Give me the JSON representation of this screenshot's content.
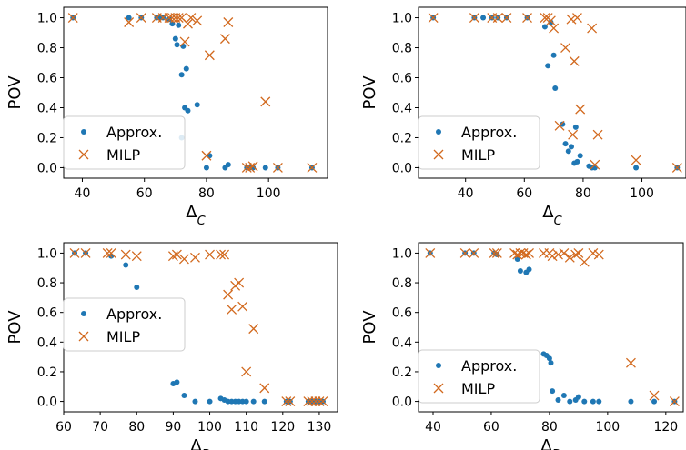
{
  "chart_data": [
    {
      "type": "scatter",
      "xlabel_main": "Δ",
      "xlabel_sub": "C",
      "ylabel": "POV",
      "xlim": [
        34,
        119
      ],
      "ylim": [
        -0.07,
        1.07
      ],
      "xticks": [
        40,
        60,
        80,
        100
      ],
      "yticks": [
        0.0,
        0.2,
        0.4,
        0.6,
        0.8,
        1.0
      ],
      "legend_position": "lower-left",
      "series": [
        {
          "name": "Approx.",
          "marker": "circle",
          "color": "#1f77b4",
          "points": [
            [
              37,
              1.0
            ],
            [
              55,
              1.0
            ],
            [
              59,
              1.0
            ],
            [
              64,
              1.0
            ],
            [
              65,
              1.0
            ],
            [
              66,
              1.0
            ],
            [
              68,
              0.99
            ],
            [
              69,
              0.96
            ],
            [
              70,
              0.86
            ],
            [
              70.5,
              0.82
            ],
            [
              71,
              0.95
            ],
            [
              72,
              0.62
            ],
            [
              72,
              0.2
            ],
            [
              72.5,
              0.81
            ],
            [
              73,
              0.4
            ],
            [
              73.5,
              0.66
            ],
            [
              74,
              0.38
            ],
            [
              77,
              0.42
            ],
            [
              80,
              0.0
            ],
            [
              81,
              0.08
            ],
            [
              86,
              0.0
            ],
            [
              87,
              0.02
            ],
            [
              93,
              0.0
            ],
            [
              94,
              0.0
            ],
            [
              95,
              0.0
            ],
            [
              99,
              0.0
            ],
            [
              103,
              0.0
            ],
            [
              114,
              0.0
            ]
          ]
        },
        {
          "name": "MILP",
          "marker": "x",
          "color": "#d2691e",
          "points": [
            [
              37,
              1.0
            ],
            [
              55,
              0.97
            ],
            [
              59,
              1.0
            ],
            [
              64,
              1.0
            ],
            [
              66,
              1.0
            ],
            [
              68,
              1.0
            ],
            [
              69,
              1.0
            ],
            [
              70,
              1.0
            ],
            [
              71,
              1.0
            ],
            [
              72,
              1.0
            ],
            [
              73,
              0.84
            ],
            [
              74,
              0.96
            ],
            [
              75,
              1.0
            ],
            [
              77,
              0.98
            ],
            [
              80,
              0.08
            ],
            [
              81,
              0.75
            ],
            [
              86,
              0.86
            ],
            [
              87,
              0.97
            ],
            [
              93,
              0.0
            ],
            [
              94,
              0.0
            ],
            [
              95,
              0.01
            ],
            [
              99,
              0.44
            ],
            [
              103,
              0.0
            ],
            [
              114,
              0.0
            ]
          ]
        }
      ]
    },
    {
      "type": "scatter",
      "xlabel_main": "Δ",
      "xlabel_sub": "C",
      "ylabel": "POV",
      "xlim": [
        24,
        115
      ],
      "ylim": [
        -0.07,
        1.07
      ],
      "xticks": [
        40,
        60,
        80,
        100
      ],
      "yticks": [
        0.0,
        0.2,
        0.4,
        0.6,
        0.8,
        1.0
      ],
      "legend_position": "lower-left",
      "series": [
        {
          "name": "Approx.",
          "marker": "circle",
          "color": "#1f77b4",
          "points": [
            [
              29,
              1.0
            ],
            [
              43,
              1.0
            ],
            [
              46,
              1.0
            ],
            [
              49,
              1.0
            ],
            [
              51,
              1.0
            ],
            [
              54,
              1.0
            ],
            [
              61,
              1.0
            ],
            [
              67,
              0.94
            ],
            [
              68,
              0.68
            ],
            [
              69,
              0.97
            ],
            [
              70,
              0.75
            ],
            [
              70.5,
              0.53
            ],
            [
              73,
              0.29
            ],
            [
              74,
              0.16
            ],
            [
              75,
              0.11
            ],
            [
              76,
              0.14
            ],
            [
              77,
              0.03
            ],
            [
              77.5,
              0.27
            ],
            [
              78,
              0.04
            ],
            [
              79,
              0.08
            ],
            [
              82,
              0.01
            ],
            [
              83,
              0.0
            ],
            [
              84,
              0.0
            ],
            [
              98,
              0.0
            ],
            [
              112,
              0.0
            ]
          ]
        },
        {
          "name": "MILP",
          "marker": "x",
          "color": "#d2691e",
          "points": [
            [
              29,
              1.0
            ],
            [
              43,
              1.0
            ],
            [
              49,
              1.0
            ],
            [
              51,
              1.0
            ],
            [
              54,
              1.0
            ],
            [
              61,
              1.0
            ],
            [
              67,
              1.0
            ],
            [
              68,
              1.0
            ],
            [
              69,
              0.98
            ],
            [
              70,
              0.93
            ],
            [
              72,
              0.28
            ],
            [
              74,
              0.8
            ],
            [
              76,
              0.99
            ],
            [
              76.5,
              0.22
            ],
            [
              77,
              0.71
            ],
            [
              78,
              1.0
            ],
            [
              79,
              0.39
            ],
            [
              83,
              0.93
            ],
            [
              84,
              0.02
            ],
            [
              85,
              0.22
            ],
            [
              98,
              0.05
            ],
            [
              112,
              0.0
            ]
          ]
        }
      ]
    },
    {
      "type": "scatter",
      "xlabel_main": "Δ",
      "xlabel_sub": "D",
      "ylabel": "POV",
      "xlim": [
        60,
        135
      ],
      "ylim": [
        -0.07,
        1.07
      ],
      "xticks": [
        60,
        70,
        80,
        90,
        100,
        110,
        120,
        130
      ],
      "yticks": [
        0.0,
        0.2,
        0.4,
        0.6,
        0.8,
        1.0
      ],
      "legend_position": "center-left",
      "series": [
        {
          "name": "Approx.",
          "marker": "circle",
          "color": "#1f77b4",
          "points": [
            [
              63,
              1.0
            ],
            [
              66,
              1.0
            ],
            [
              73,
              0.98
            ],
            [
              77,
              0.92
            ],
            [
              80,
              0.77
            ],
            [
              90,
              0.12
            ],
            [
              91,
              0.13
            ],
            [
              93,
              0.04
            ],
            [
              96,
              0.0
            ],
            [
              100,
              0.0
            ],
            [
              103,
              0.02
            ],
            [
              104,
              0.01
            ],
            [
              105,
              0.0
            ],
            [
              106,
              0.0
            ],
            [
              107,
              0.0
            ],
            [
              108,
              0.0
            ],
            [
              109,
              0.0
            ],
            [
              110,
              0.0
            ],
            [
              112,
              0.0
            ],
            [
              115,
              0.0
            ],
            [
              121,
              0.0
            ],
            [
              122,
              0.0
            ],
            [
              127,
              0.0
            ],
            [
              128,
              0.0
            ],
            [
              129,
              0.0
            ],
            [
              130,
              0.0
            ],
            [
              131,
              0.0
            ]
          ]
        },
        {
          "name": "MILP",
          "marker": "x",
          "color": "#d2691e",
          "points": [
            [
              63,
              1.0
            ],
            [
              66,
              1.0
            ],
            [
              72,
              1.0
            ],
            [
              73,
              1.0
            ],
            [
              77,
              0.99
            ],
            [
              80,
              0.98
            ],
            [
              90,
              0.98
            ],
            [
              91,
              0.99
            ],
            [
              93,
              0.96
            ],
            [
              96,
              0.97
            ],
            [
              100,
              0.99
            ],
            [
              103,
              0.99
            ],
            [
              104,
              0.99
            ],
            [
              105,
              0.72
            ],
            [
              106,
              0.62
            ],
            [
              107,
              0.78
            ],
            [
              108,
              0.8
            ],
            [
              109,
              0.64
            ],
            [
              112,
              0.49
            ],
            [
              110,
              0.2
            ],
            [
              115,
              0.09
            ],
            [
              121,
              0.0
            ],
            [
              122,
              0.0
            ],
            [
              127,
              0.0
            ],
            [
              128,
              0.0
            ],
            [
              129,
              0.0
            ],
            [
              130,
              0.0
            ],
            [
              131,
              0.0
            ]
          ]
        }
      ]
    },
    {
      "type": "scatter",
      "xlabel_main": "Δ",
      "xlabel_sub": "D",
      "ylabel": "POV",
      "xlim": [
        35,
        126
      ],
      "ylim": [
        -0.07,
        1.07
      ],
      "xticks": [
        40,
        60,
        80,
        100,
        120
      ],
      "yticks": [
        0.0,
        0.2,
        0.4,
        0.6,
        0.8,
        1.0
      ],
      "legend_position": "lower-left",
      "series": [
        {
          "name": "Approx.",
          "marker": "circle",
          "color": "#1f77b4",
          "points": [
            [
              39,
              1.0
            ],
            [
              51,
              1.0
            ],
            [
              54,
              1.0
            ],
            [
              61,
              1.0
            ],
            [
              62,
              0.99
            ],
            [
              69,
              0.96
            ],
            [
              70,
              0.88
            ],
            [
              72,
              0.87
            ],
            [
              73,
              0.89
            ],
            [
              78,
              0.32
            ],
            [
              79,
              0.31
            ],
            [
              80,
              0.29
            ],
            [
              80.5,
              0.26
            ],
            [
              81,
              0.07
            ],
            [
              83,
              0.01
            ],
            [
              85,
              0.04
            ],
            [
              87,
              0.0
            ],
            [
              89,
              0.01
            ],
            [
              90,
              0.03
            ],
            [
              92,
              0.0
            ],
            [
              95,
              0.0
            ],
            [
              97,
              0.0
            ],
            [
              108,
              0.0
            ],
            [
              116,
              0.0
            ],
            [
              123,
              0.0
            ]
          ]
        },
        {
          "name": "MILP",
          "marker": "x",
          "color": "#d2691e",
          "points": [
            [
              39,
              1.0
            ],
            [
              51,
              1.0
            ],
            [
              54,
              1.0
            ],
            [
              61,
              1.0
            ],
            [
              62,
              1.0
            ],
            [
              68,
              1.0
            ],
            [
              69,
              0.99
            ],
            [
              70,
              1.0
            ],
            [
              71,
              1.0
            ],
            [
              72,
              0.99
            ],
            [
              73,
              1.0
            ],
            [
              78,
              1.0
            ],
            [
              80,
              1.0
            ],
            [
              81,
              0.98
            ],
            [
              83,
              0.99
            ],
            [
              85,
              1.0
            ],
            [
              87,
              0.97
            ],
            [
              89,
              0.99
            ],
            [
              90,
              1.0
            ],
            [
              92,
              0.94
            ],
            [
              95,
              1.0
            ],
            [
              97,
              0.99
            ],
            [
              108,
              0.26
            ],
            [
              116,
              0.04
            ],
            [
              123,
              0.0
            ]
          ]
        }
      ]
    }
  ]
}
